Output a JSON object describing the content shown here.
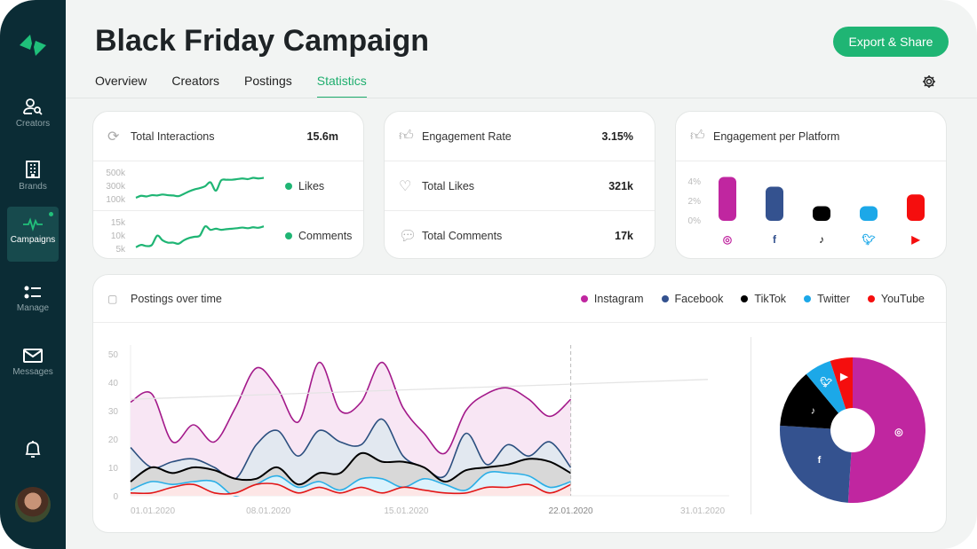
{
  "sidebar": {
    "items": [
      {
        "label": "Creators",
        "icon": "user-search-icon"
      },
      {
        "label": "Brands",
        "icon": "building-icon"
      },
      {
        "label": "Campaigns",
        "icon": "pulse-icon",
        "active": true
      },
      {
        "label": "Manage",
        "icon": "list-icon"
      },
      {
        "label": "Messages",
        "icon": "envelope-icon"
      }
    ],
    "bell": "bell-icon",
    "avatar": "avatar"
  },
  "header": {
    "title": "Black Friday Campaign",
    "export_label": "Export & Share",
    "tabs": [
      {
        "label": "Overview"
      },
      {
        "label": "Creators"
      },
      {
        "label": "Postings"
      },
      {
        "label": "Statistics",
        "active": true
      }
    ]
  },
  "interactions": {
    "title": "Total Interactions",
    "value": "15.6m",
    "likes": {
      "label": "Likes",
      "ticks": [
        "500k",
        "300k",
        "100k"
      ],
      "values": [
        150,
        180,
        170,
        190,
        185,
        200,
        190,
        185,
        175,
        210,
        250,
        280,
        300,
        330,
        390,
        260,
        420,
        430,
        430,
        440,
        450,
        440,
        460,
        450,
        460
      ]
    },
    "comments": {
      "label": "Comments",
      "ticks": [
        "15k",
        "10k",
        "5k"
      ],
      "values": [
        5,
        6,
        5.5,
        6,
        10,
        8,
        7,
        7,
        6.5,
        8,
        9,
        9.5,
        10,
        14,
        12.5,
        13,
        12.5,
        12.8,
        13,
        13.2,
        13.5,
        13.2,
        13.6,
        13.4,
        14
      ]
    }
  },
  "engagement": {
    "rows": [
      {
        "label": "Engagement Rate",
        "value": "3.15%",
        "icon": "thumbs-up-icon"
      },
      {
        "label": "Total Likes",
        "value": "321k",
        "icon": "heart-icon"
      },
      {
        "label": "Total Comments",
        "value": "17k",
        "icon": "chat-icon"
      }
    ]
  },
  "colors": {
    "accent": "#1fb574",
    "Instagram": "#c026a0",
    "Facebook": "#34528f",
    "TikTok": "#000000",
    "Twitter": "#1ca8e8",
    "YouTube": "#f50e0e"
  },
  "chart_data": [
    {
      "type": "bar",
      "title": "Engagement per Platform",
      "categories": [
        "Instagram",
        "Facebook",
        "TikTok",
        "Twitter",
        "YouTube"
      ],
      "values": [
        4.5,
        3.5,
        1.5,
        1.5,
        2.7
      ],
      "yticks": [
        "4%",
        "2%",
        "0%"
      ],
      "ylim": [
        0,
        4
      ]
    },
    {
      "type": "area",
      "title": "Postings over time",
      "ylim": [
        0,
        50
      ],
      "yticks": [
        0,
        10,
        20,
        30,
        40,
        50
      ],
      "xticks": [
        "01.01.2020",
        "08.01.2020",
        "15.01.2020",
        "22.01.2020",
        "31.01.2020"
      ],
      "series": [
        {
          "name": "Instagram",
          "values": [
            33,
            36,
            19,
            25,
            19,
            31,
            45,
            38,
            26,
            47,
            30,
            33,
            47,
            31,
            22,
            15,
            30,
            36,
            38,
            34,
            28,
            34
          ]
        },
        {
          "name": "Facebook",
          "values": [
            17,
            10,
            12,
            13,
            10,
            6,
            18,
            23,
            14,
            23,
            19,
            18,
            27,
            14,
            10,
            7,
            22,
            11,
            18,
            14,
            19,
            10
          ]
        },
        {
          "name": "TikTok",
          "values": [
            5,
            10,
            8,
            10,
            9,
            6,
            6,
            10,
            4,
            8,
            8,
            15,
            12,
            12,
            10,
            5,
            9,
            10,
            11,
            13,
            12,
            8
          ]
        },
        {
          "name": "Twitter",
          "values": [
            2,
            5,
            4,
            5,
            5,
            0,
            4,
            7,
            3,
            5,
            2,
            6,
            6,
            3,
            6,
            4,
            2,
            8,
            8,
            7,
            3,
            5
          ]
        },
        {
          "name": "YouTube",
          "values": [
            1,
            1,
            3,
            4,
            1,
            1,
            4,
            4,
            1,
            3,
            1,
            3,
            1,
            3,
            2,
            1,
            1,
            3,
            3,
            4,
            1,
            4
          ]
        }
      ],
      "trend": [
        34,
        41
      ]
    },
    {
      "type": "pie",
      "categories": [
        "Instagram",
        "Facebook",
        "TikTok",
        "Twitter",
        "YouTube"
      ],
      "values": [
        51,
        25,
        13,
        6,
        5
      ]
    }
  ]
}
